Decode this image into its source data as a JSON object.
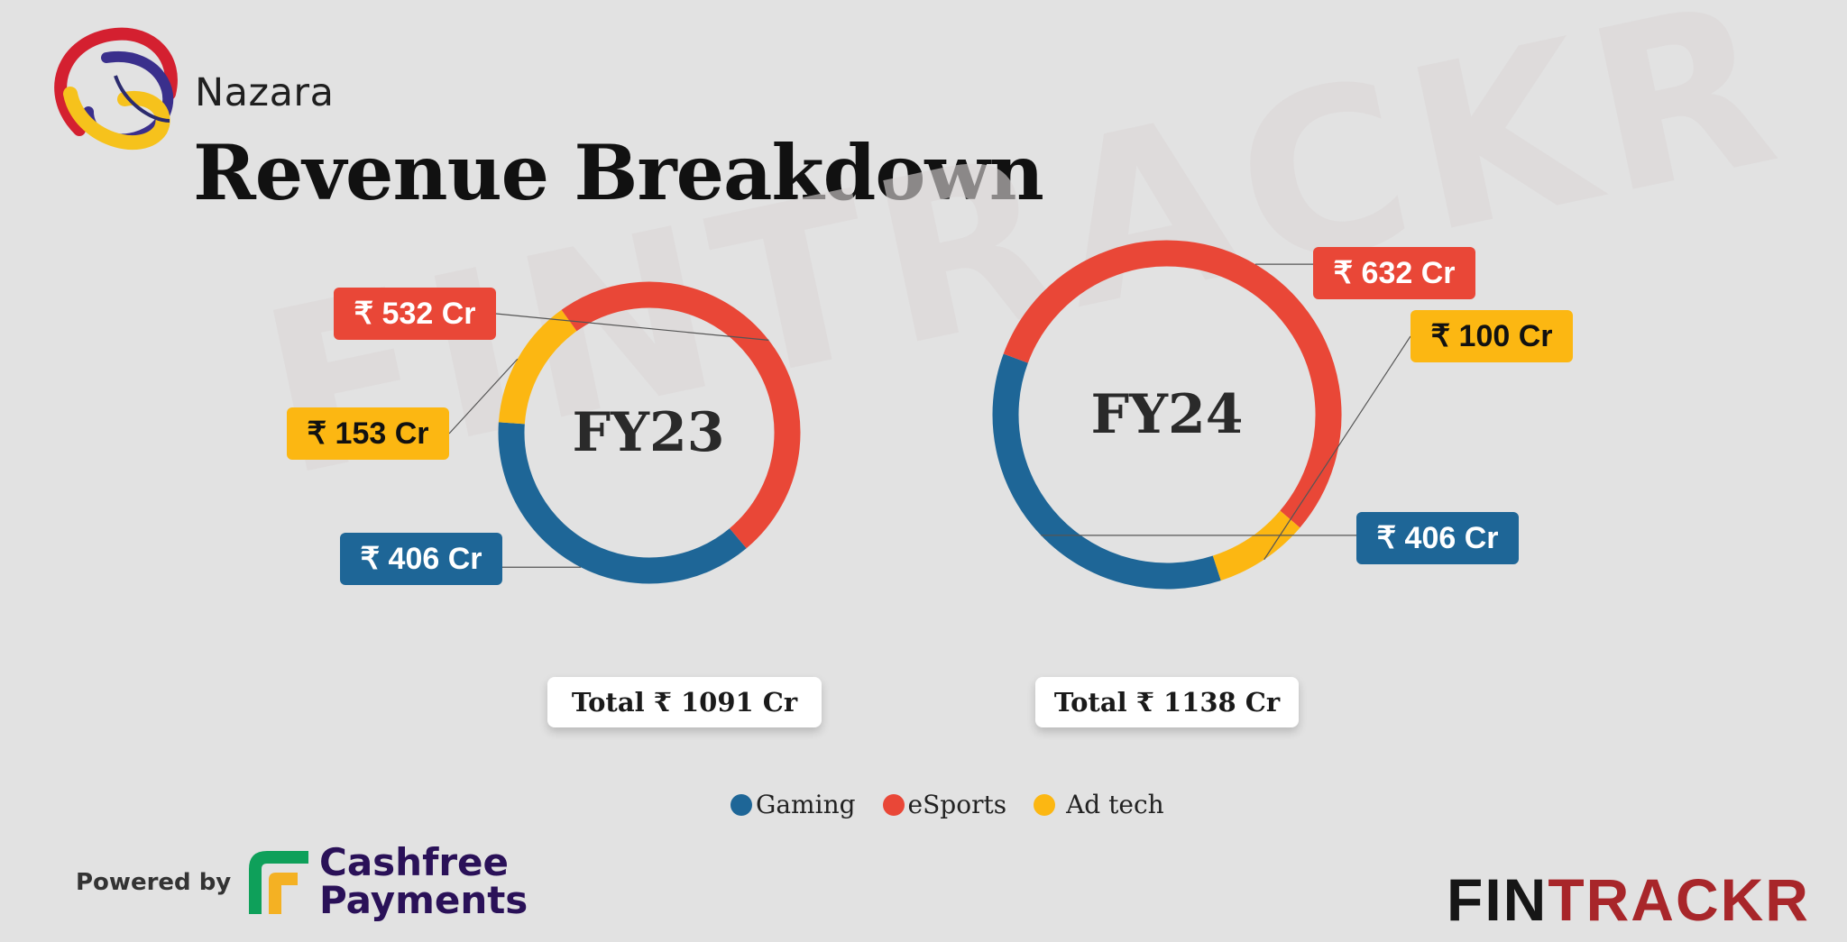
{
  "brand": {
    "name": "Nazara"
  },
  "title": "Revenue Breakdown",
  "watermark": "FINTRACKR",
  "colors": {
    "gaming": "#1e6697",
    "esports": "#e94737",
    "adtech": "#fcb712",
    "background": "#e2e2e2"
  },
  "chart_data": [
    {
      "type": "pie",
      "title": "FY23",
      "total_label": "Total ₹ 1091 Cr",
      "categories": [
        "Gaming",
        "eSports",
        "Ad tech"
      ],
      "values": [
        406,
        532,
        153
      ],
      "value_labels": [
        "₹ 406 Cr",
        "₹ 532 Cr",
        "₹ 153 Cr"
      ],
      "unit": "₹ Cr"
    },
    {
      "type": "pie",
      "title": "FY24",
      "total_label": "Total ₹ 1138 Cr",
      "categories": [
        "Gaming",
        "eSports",
        "Ad tech"
      ],
      "values": [
        406,
        632,
        100
      ],
      "value_labels": [
        "₹ 406 Cr",
        "₹ 632 Cr",
        "₹ 100 Cr"
      ],
      "unit": "₹ Cr"
    }
  ],
  "legend": [
    {
      "label": "Gaming",
      "color": "#1e6697"
    },
    {
      "label": "eSports",
      "color": "#e94737"
    },
    {
      "label": "Ad tech",
      "color": "#fcb712"
    }
  ],
  "footer": {
    "powered_by": "Powered by",
    "sponsor_line1": "Cashfree",
    "sponsor_line2": "Payments",
    "fintrackr_part1": "FIN",
    "fintrackr_part2": "TRACKR"
  }
}
